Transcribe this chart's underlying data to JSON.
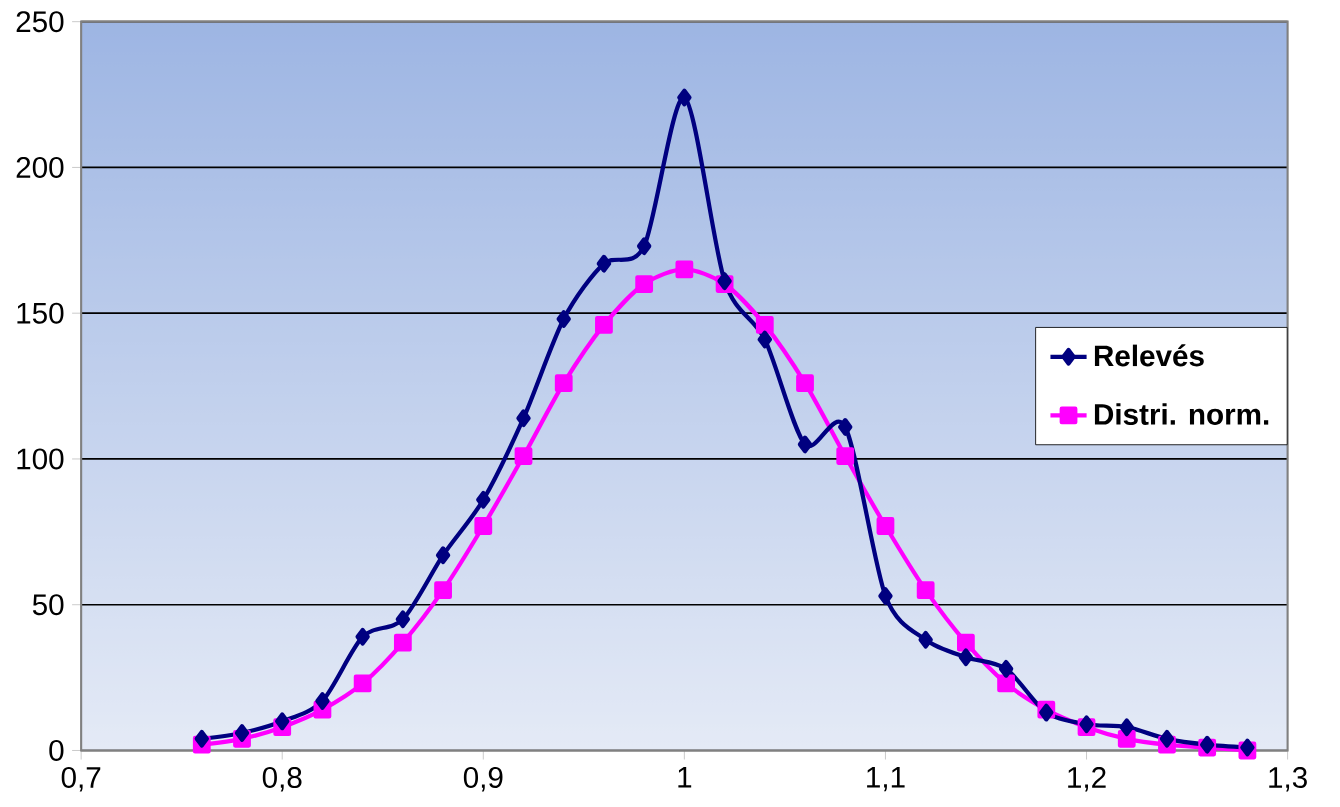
{
  "chart_data": {
    "type": "line",
    "x": [
      0.76,
      0.78,
      0.8,
      0.82,
      0.84,
      0.86,
      0.88,
      0.9,
      0.92,
      0.94,
      0.96,
      0.98,
      1.0,
      1.02,
      1.04,
      1.06,
      1.08,
      1.1,
      1.12,
      1.14,
      1.16,
      1.18,
      1.2,
      1.22,
      1.24,
      1.26,
      1.28
    ],
    "series": [
      {
        "name": "Relevés",
        "color": "#000080",
        "marker": "diamond",
        "values": [
          4,
          6,
          10,
          17,
          39,
          45,
          67,
          86,
          114,
          148,
          167,
          173,
          224,
          161,
          141,
          105,
          111,
          53,
          38,
          32,
          28,
          13,
          9,
          8,
          4,
          2,
          1
        ]
      },
      {
        "name": "Distri. norm.",
        "color": "#ff00ff",
        "marker": "square",
        "values": [
          2,
          4,
          8,
          14,
          23,
          37,
          55,
          77,
          101,
          126,
          146,
          160,
          165,
          160,
          146,
          126,
          101,
          77,
          55,
          37,
          23,
          14,
          8,
          4,
          2,
          1,
          0
        ]
      }
    ],
    "xlim": [
      0.7,
      1.3
    ],
    "xticks": [
      {
        "value": 0.7,
        "label": "0,7"
      },
      {
        "value": 0.8,
        "label": "0,8"
      },
      {
        "value": 0.9,
        "label": "0,9"
      },
      {
        "value": 1.0,
        "label": "1"
      },
      {
        "value": 1.1,
        "label": "1,1"
      },
      {
        "value": 1.2,
        "label": "1,2"
      },
      {
        "value": 1.3,
        "label": "1,3"
      }
    ],
    "ylim": [
      0,
      250
    ],
    "yticks": [
      0,
      50,
      100,
      150,
      200,
      250
    ],
    "grid": "y",
    "legend": "right",
    "line_style": "solid"
  }
}
